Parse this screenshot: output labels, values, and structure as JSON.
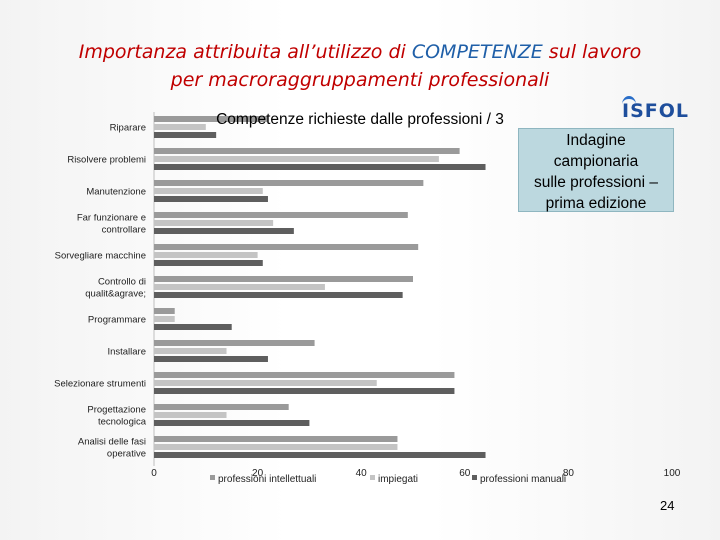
{
  "slide": {
    "title_part1": "Importanza attribuita all’utilizzo di ",
    "title_highlight": "COMPETENZE",
    "title_part2": " sul lavoro",
    "title_line2": "per macroraggruppamenti professionali",
    "logo_text": "ISFOL",
    "callout": [
      "Indagine",
      "campionaria",
      "sulle professioni –",
      "prima edizione"
    ],
    "page_number": "24"
  },
  "chart_data": {
    "type": "bar",
    "orientation": "horizontal",
    "title": "Competenze richieste dalle professioni / 3",
    "categories": [
      "Riparare",
      "Risolvere problemi",
      "Manutenzione",
      "Far funzionare e controllare",
      "Sorvegliare macchine",
      "Controllo di qualit&agrave;",
      "Programmare",
      "Installare",
      "Selezionare strumenti",
      "Progettazione tecnologica",
      "Analisi delle fasi operative"
    ],
    "category_lines": [
      [
        "Riparare"
      ],
      [
        "Risolvere problemi"
      ],
      [
        "Manutenzione"
      ],
      [
        "Far funzionare e",
        "controllare"
      ],
      [
        "Sorvegliare macchine"
      ],
      [
        "Controllo di",
        "qualit&agrave;"
      ],
      [
        "Programmare"
      ],
      [
        "Installare"
      ],
      [
        "Selezionare strumenti"
      ],
      [
        "Progettazione",
        "tecnologica"
      ],
      [
        "Analisi delle fasi",
        "operative"
      ]
    ],
    "series": [
      {
        "name": "professioni intellettuali",
        "color": "#9a9a9a",
        "values": [
          22,
          59,
          52,
          49,
          51,
          50,
          4,
          31,
          58,
          26,
          47
        ]
      },
      {
        "name": "impiegati",
        "color": "#c4c4c4",
        "values": [
          10,
          55,
          21,
          23,
          20,
          33,
          4,
          14,
          43,
          14,
          47
        ]
      },
      {
        "name": "professioni manuali",
        "color": "#5e5e5e",
        "values": [
          12,
          64,
          22,
          27,
          21,
          48,
          15,
          22,
          58,
          30,
          64
        ]
      }
    ],
    "xlim": [
      0,
      100
    ],
    "xticks": [
      0,
      20,
      40,
      60,
      80,
      100
    ],
    "grid": false,
    "legend_position": "bottom"
  }
}
